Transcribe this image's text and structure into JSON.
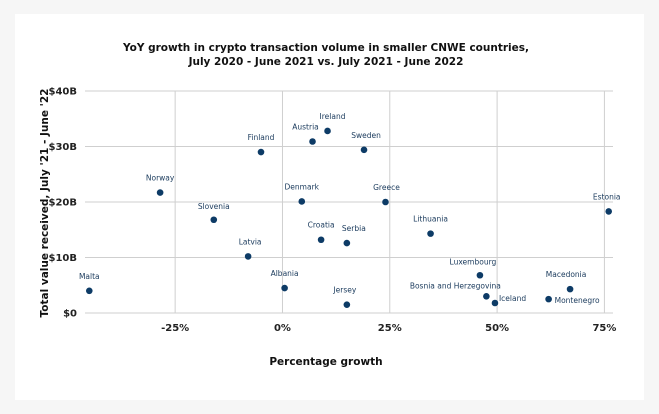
{
  "chart_data": {
    "type": "scatter",
    "title": [
      "YoY growth in crypto transaction volume in smaller CNWE countries,",
      "July 2020 - June 2021 vs. July 2021 - June 2022"
    ],
    "xlabel": "Percentage growth",
    "ylabel": "Total value received, July '21 - June '22",
    "xlim": [
      -46,
      77
    ],
    "ylim": [
      0,
      40
    ],
    "x_ticks": [
      {
        "value": -25,
        "label": "-25%"
      },
      {
        "value": 0,
        "label": "0%"
      },
      {
        "value": 25,
        "label": "25%"
      },
      {
        "value": 50,
        "label": "50%"
      },
      {
        "value": 75,
        "label": "75%"
      }
    ],
    "y_ticks": [
      {
        "value": 0,
        "label": "$0"
      },
      {
        "value": 10,
        "label": "$10B"
      },
      {
        "value": 20,
        "label": "$20B"
      },
      {
        "value": 30,
        "label": "$30B"
      },
      {
        "value": 40,
        "label": "$40B"
      }
    ],
    "points": [
      {
        "name": "Malta",
        "x": -45,
        "y": 4
      },
      {
        "name": "Norway",
        "x": -28.5,
        "y": 21.7
      },
      {
        "name": "Slovenia",
        "x": -16,
        "y": 16.8
      },
      {
        "name": "Latvia",
        "x": -8,
        "y": 10.2
      },
      {
        "name": "Finland",
        "x": -5,
        "y": 29
      },
      {
        "name": "Albania",
        "x": 0.5,
        "y": 4.5
      },
      {
        "name": "Denmark",
        "x": 4.5,
        "y": 20.1
      },
      {
        "name": "Austria",
        "x": 7,
        "y": 30.9
      },
      {
        "name": "Croatia",
        "x": 9,
        "y": 13.2
      },
      {
        "name": "Ireland",
        "x": 10.5,
        "y": 32.8
      },
      {
        "name": "Serbia",
        "x": 15,
        "y": 12.6
      },
      {
        "name": "Jersey",
        "x": 15,
        "y": 1.5
      },
      {
        "name": "Sweden",
        "x": 19,
        "y": 29.4
      },
      {
        "name": "Greece",
        "x": 24,
        "y": 20
      },
      {
        "name": "Lithuania",
        "x": 34.5,
        "y": 14.3
      },
      {
        "name": "Luxembourg",
        "x": 46,
        "y": 6.8
      },
      {
        "name": "Bosnia and Herzegovina",
        "x": 47.5,
        "y": 3
      },
      {
        "name": "Iceland",
        "x": 49.5,
        "y": 1.8
      },
      {
        "name": "Montenegro",
        "x": 62,
        "y": 2.5
      },
      {
        "name": "Macedonia",
        "x": 67,
        "y": 4.3
      },
      {
        "name": "Estonia",
        "x": 76,
        "y": 18.3
      }
    ]
  }
}
